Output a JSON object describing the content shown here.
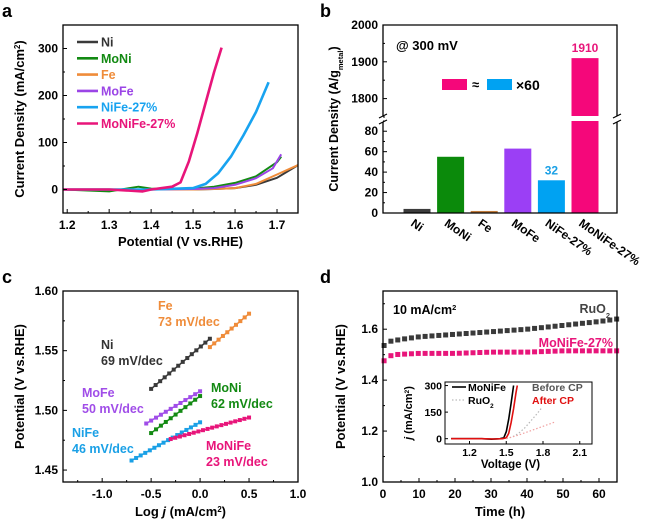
{
  "chart_data": [
    {
      "panel": "a",
      "type": "line",
      "xlabel": "Potential (V vs.RHE)",
      "ylabel": "Current Density (mA/cm²)",
      "ylabel_sup": "2",
      "xlim": [
        1.19,
        1.75
      ],
      "ylim": [
        -50,
        350
      ],
      "xticks": [
        1.2,
        1.3,
        1.4,
        1.5,
        1.6,
        1.7
      ],
      "xtick_labels": [
        "1.2",
        "1.3",
        "1.4",
        "1.5",
        "1.6",
        "1.7"
      ],
      "yticks": [
        0,
        100,
        200,
        300
      ],
      "ytick_labels": [
        "0",
        "100",
        "200",
        "300"
      ],
      "legend_position": "top-left",
      "series": [
        {
          "name": "Ni",
          "color": "#3a3a3a",
          "x": [
            1.19,
            1.3,
            1.4,
            1.5,
            1.55,
            1.6,
            1.65,
            1.7,
            1.75
          ],
          "y": [
            0,
            -1,
            0,
            0,
            1,
            3,
            10,
            25,
            52
          ]
        },
        {
          "name": "MoNi",
          "color": "#138a13",
          "x": [
            1.19,
            1.3,
            1.37,
            1.4,
            1.45,
            1.5,
            1.55,
            1.6,
            1.65,
            1.7,
            1.71
          ],
          "y": [
            0,
            -4,
            6,
            2,
            1,
            2,
            6,
            14,
            28,
            58,
            70
          ]
        },
        {
          "name": "Fe",
          "color": "#ef8c3a",
          "x": [
            1.19,
            1.3,
            1.4,
            1.5,
            1.55,
            1.6,
            1.65,
            1.7,
            1.75
          ],
          "y": [
            0,
            0,
            0,
            0,
            1,
            3,
            12,
            32,
            52
          ]
        },
        {
          "name": "MoFe",
          "color": "#9b45e6",
          "x": [
            1.19,
            1.3,
            1.4,
            1.5,
            1.55,
            1.6,
            1.65,
            1.69,
            1.71
          ],
          "y": [
            0,
            0,
            0,
            1,
            3,
            10,
            24,
            45,
            75
          ]
        },
        {
          "name": "NiFe-27%",
          "color": "#18a3f0",
          "x": [
            1.19,
            1.3,
            1.4,
            1.5,
            1.53,
            1.56,
            1.59,
            1.62,
            1.65,
            1.68
          ],
          "y": [
            0,
            0,
            0,
            3,
            12,
            35,
            70,
            115,
            165,
            228
          ]
        },
        {
          "name": "MoNiFe-27%",
          "color": "#e8157a",
          "x": [
            1.19,
            1.3,
            1.38,
            1.4,
            1.45,
            1.47,
            1.49,
            1.51,
            1.53,
            1.55,
            1.568
          ],
          "y": [
            0,
            0,
            -4,
            0,
            6,
            15,
            60,
            120,
            185,
            250,
            302
          ]
        }
      ]
    },
    {
      "panel": "b",
      "type": "bar",
      "title": "@ 300 mV",
      "ylabel": "Current Density (A/g",
      "ylabel_sub": "metal",
      "ylabel_end": ")",
      "categories": [
        "Ni",
        "MoNi",
        "Fe",
        "MoFe",
        "NiFe-27%",
        "MoNiFe-27%"
      ],
      "values": [
        4,
        55,
        2,
        63,
        32,
        1910
      ],
      "colors": [
        "#3c3c3c",
        "#0b8a0b",
        "#c07a3a",
        "#9b3ff5",
        "#00a2f2",
        "#f5077a"
      ],
      "data_labels": {
        "4": "32",
        "5": "1910"
      },
      "data_label_colors": {
        "4": "#1aa0e6",
        "5": "#e8157a"
      },
      "axis_break": true,
      "lower_ylim": [
        0,
        90
      ],
      "upper_ylim": [
        1750,
        2000
      ],
      "lower_yticks": [
        0,
        20,
        40,
        60,
        80
      ],
      "upper_yticks": [
        1800,
        1900,
        2000
      ],
      "annotation": {
        "left_color": "#f5077a",
        "approx": "≈",
        "right_color": "#00a2f2",
        "multiplier": "×60"
      }
    },
    {
      "panel": "c",
      "type": "scatter",
      "xlabel": "Log j (mA/cm²)",
      "xlabel_parts": [
        "Log ",
        "j",
        " (mA/cm",
        "2",
        ")"
      ],
      "ylabel": "Potential (V vs.RHE)",
      "xlim": [
        -1.4,
        1.0
      ],
      "ylim": [
        1.44,
        1.6
      ],
      "xticks": [
        -1.0,
        -0.5,
        0.0,
        0.5,
        1.0
      ],
      "xtick_labels": [
        "-1.0",
        "-0.5",
        "0.0",
        "0.5",
        "1.0"
      ],
      "yticks": [
        1.45,
        1.5,
        1.55,
        1.6
      ],
      "ytick_labels": [
        "1.45",
        "1.50",
        "1.55",
        "1.60"
      ],
      "series": [
        {
          "name": "Ni",
          "slope_label": "69 mV/dec",
          "color": "#3a3a3a",
          "x_start": -0.5,
          "x_end": 0.1,
          "y_start": 1.518,
          "y_end": 1.56,
          "n": 14
        },
        {
          "name": "Fe",
          "slope_label": "73 mV/dec",
          "color": "#ef8c3a",
          "x_start": 0.1,
          "x_end": 0.5,
          "y_start": 1.553,
          "y_end": 1.581,
          "n": 10
        },
        {
          "name": "MoFe",
          "slope_label": "50 mV/dec",
          "color": "#a04de8",
          "x_start": -0.55,
          "x_end": 0.0,
          "y_start": 1.489,
          "y_end": 1.516,
          "n": 12
        },
        {
          "name": "MoNi",
          "slope_label": "62 mV/dec",
          "color": "#138a13",
          "x_start": -0.5,
          "x_end": 0.0,
          "y_start": 1.481,
          "y_end": 1.512,
          "n": 11
        },
        {
          "name": "NiFe",
          "slope_label": "46 mV/dec",
          "color": "#1aa0e6",
          "x_start": -0.7,
          "x_end": 0.0,
          "y_start": 1.458,
          "y_end": 1.49,
          "n": 16
        },
        {
          "name": "MoNiFe",
          "slope_label": "23 mV/dec",
          "color": "#e8157a",
          "x_start": -0.3,
          "x_end": 0.5,
          "y_start": 1.476,
          "y_end": 1.494,
          "n": 18
        }
      ]
    },
    {
      "panel": "d",
      "type": "scatter",
      "xlabel": "Time (h)",
      "ylabel": "Potential (V vs.RHE)",
      "annotation": "10 mA/cm²",
      "annotation_parts": [
        "10 mA/cm",
        "2"
      ],
      "xlim": [
        0,
        65
      ],
      "ylim": [
        1.0,
        1.75
      ],
      "xticks": [
        0,
        10,
        20,
        30,
        40,
        50,
        60
      ],
      "xtick_labels": [
        "0",
        "10",
        "20",
        "30",
        "40",
        "50",
        "60"
      ],
      "yticks": [
        1.0,
        1.2,
        1.4,
        1.6
      ],
      "ytick_labels": [
        "1.0",
        "1.2",
        "1.4",
        "1.6"
      ],
      "series": [
        {
          "name": "RuO₂",
          "name_parts": [
            "RuO",
            "2"
          ],
          "color": "#3a3a3a",
          "x": [
            0,
            1,
            5,
            10,
            20,
            30,
            40,
            50,
            60,
            65
          ],
          "y": [
            1.53,
            1.55,
            1.56,
            1.57,
            1.58,
            1.59,
            1.6,
            1.615,
            1.63,
            1.64
          ]
        },
        {
          "name": "MoNiFe-27%",
          "color": "#e8157a",
          "x": [
            0,
            1,
            3,
            10,
            20,
            30,
            40,
            50,
            60,
            65
          ],
          "y": [
            1.47,
            1.49,
            1.5,
            1.505,
            1.505,
            1.51,
            1.51,
            1.515,
            1.515,
            1.515
          ]
        }
      ],
      "inset": {
        "type": "line",
        "xlabel": "Voltage (V)",
        "ylabel": "j (mA/cm²)",
        "ylabel_parts": [
          "j",
          " (mA/cm",
          "2",
          ")"
        ],
        "xlim": [
          1.0,
          2.2
        ],
        "ylim": [
          -30,
          320
        ],
        "xticks": [
          1.2,
          1.5,
          1.8,
          2.1
        ],
        "xtick_labels": [
          "1.2",
          "1.5",
          "1.8",
          "2.1"
        ],
        "yticks": [
          0,
          150,
          300
        ],
        "ytick_labels": [
          "0",
          "150",
          "300"
        ],
        "legend": [
          {
            "label": "MoNiFe",
            "style": "solid"
          },
          {
            "label": "RuO₂",
            "label_parts": [
              "RuO",
              "2"
            ],
            "style": "dotted"
          }
        ],
        "condition_labels": [
          {
            "label": "Before CP",
            "color": "#555555"
          },
          {
            "label": "After CP",
            "color": "#e01010"
          }
        ],
        "series": [
          {
            "name": "MoNiFe Before CP",
            "color": "#000000",
            "style": "solid",
            "x": [
              1.05,
              1.3,
              1.38,
              1.45,
              1.48,
              1.5,
              1.52,
              1.54,
              1.56
            ],
            "y": [
              0,
              0,
              -3,
              0,
              5,
              40,
              110,
              200,
              300
            ]
          },
          {
            "name": "MoNiFe After CP",
            "color": "#e01010",
            "style": "solid",
            "x": [
              1.05,
              1.3,
              1.4,
              1.47,
              1.5,
              1.52,
              1.54,
              1.56,
              1.58,
              1.59
            ],
            "y": [
              0,
              0,
              -2,
              0,
              5,
              30,
              90,
              170,
              260,
              300
            ]
          },
          {
            "name": "RuO2 Before CP",
            "color": "#b8b8b8",
            "style": "dotted",
            "x": [
              1.5,
              1.55,
              1.6,
              1.65,
              1.7,
              1.75,
              1.79
            ],
            "y": [
              0,
              10,
              30,
              60,
              100,
              140,
              175
            ]
          },
          {
            "name": "RuO2 After CP",
            "color": "#f0a0a0",
            "style": "dotted",
            "x": [
              1.5,
              1.6,
              1.7,
              1.8,
              1.9
            ],
            "y": [
              0,
              20,
              45,
              70,
              95
            ]
          }
        ]
      }
    }
  ]
}
